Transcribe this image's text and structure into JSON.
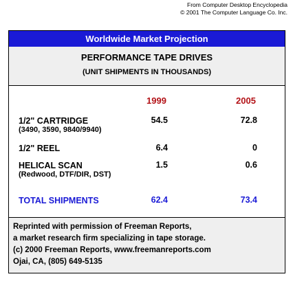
{
  "credit": {
    "line1": "From Computer Desktop Encyclopedia",
    "line2": "© 2001 The Computer Language Co. Inc."
  },
  "header": {
    "title": "Worldwide Market Projection",
    "subtitle": "PERFORMANCE TAPE DRIVES",
    "units": "(UNIT SHIPMENTS IN THOUSANDS)"
  },
  "colors": {
    "title_bar": "#1a1ad6",
    "year_text": "#b31217",
    "total_text": "#1a1ad6",
    "panel_background": "#efefef"
  },
  "table": {
    "years": [
      "1999",
      "2005"
    ],
    "rows": [
      {
        "label": "1/2\" CARTRIDGE",
        "detail": "(3490, 3590, 9840/9940)",
        "values": [
          "54.5",
          "72.8"
        ]
      },
      {
        "label": "1/2\" REEL",
        "detail": "",
        "values": [
          "6.4",
          "0"
        ]
      },
      {
        "label": "HELICAL SCAN",
        "detail": "(Redwood, DTF/DIR, DST)",
        "values": [
          "1.5",
          "0.6"
        ]
      }
    ],
    "total": {
      "label": "TOTAL SHIPMENTS",
      "values": [
        "62.4",
        "73.4"
      ]
    }
  },
  "footer": {
    "lines": [
      "Reprinted with permission of Freeman Reports,",
      "a market research firm specializing in tape storage.",
      "(c) 2000 Freeman Reports, www.freemanreports.com",
      "Ojai, CA, (805) 649-5135"
    ]
  }
}
